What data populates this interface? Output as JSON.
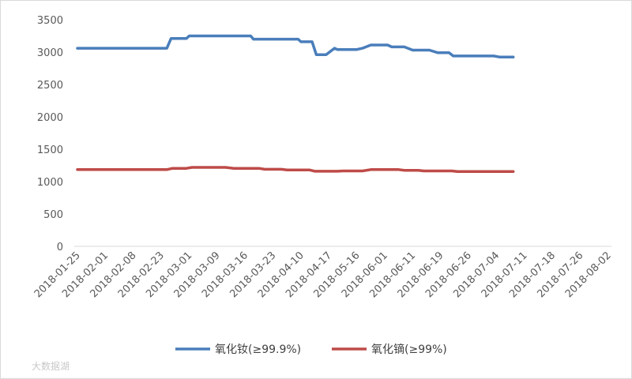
{
  "chart_data": {
    "type": "line",
    "title": "",
    "xlabel": "",
    "ylabel": "",
    "ylim": [
      0,
      3500
    ],
    "y_ticks": [
      0,
      500,
      1000,
      1500,
      2000,
      2500,
      3000,
      3500
    ],
    "grid": false,
    "legend_position": "bottom",
    "x_tick_labels": [
      "2018-01-25",
      "2018-02-01",
      "2018-02-08",
      "2018-02-23",
      "2018-03-01",
      "2018-03-09",
      "2018-03-16",
      "2018-03-23",
      "2018-04-10",
      "2018-04-17",
      "2018-05-16",
      "2018-06-01",
      "2018-06-11",
      "2018-06-19",
      "2018-06-26",
      "2018-07-04",
      "2018-07-11",
      "2018-07-18",
      "2018-07-26",
      "2018-08-02"
    ],
    "series": [
      {
        "name": "氧化钕(≥99.9%)",
        "color": "#4a7ebb",
        "points": [
          [
            0.0,
            3060
          ],
          [
            3.2,
            3060
          ],
          [
            3.35,
            3210
          ],
          [
            3.9,
            3210
          ],
          [
            4.0,
            3250
          ],
          [
            4.4,
            3250
          ],
          [
            5.5,
            3250
          ],
          [
            6.2,
            3250
          ],
          [
            6.3,
            3200
          ],
          [
            7.9,
            3200
          ],
          [
            8.0,
            3160
          ],
          [
            8.4,
            3160
          ],
          [
            8.55,
            2960
          ],
          [
            8.9,
            2960
          ],
          [
            9.2,
            3060
          ],
          [
            9.3,
            3040
          ],
          [
            10.0,
            3040
          ],
          [
            10.2,
            3060
          ],
          [
            10.5,
            3110
          ],
          [
            11.1,
            3110
          ],
          [
            11.25,
            3080
          ],
          [
            11.7,
            3080
          ],
          [
            12.0,
            3030
          ],
          [
            12.6,
            3030
          ],
          [
            12.9,
            2990
          ],
          [
            13.3,
            2990
          ],
          [
            13.45,
            2940
          ],
          [
            14.9,
            2940
          ],
          [
            15.1,
            2925
          ],
          [
            15.6,
            2925
          ]
        ]
      },
      {
        "name": "氧化镝(≥99%)",
        "color": "#be4b48",
        "points": [
          [
            0.0,
            1185
          ],
          [
            3.2,
            1185
          ],
          [
            3.4,
            1205
          ],
          [
            3.9,
            1205
          ],
          [
            4.1,
            1220
          ],
          [
            5.3,
            1220
          ],
          [
            5.6,
            1205
          ],
          [
            6.5,
            1205
          ],
          [
            6.7,
            1190
          ],
          [
            7.3,
            1190
          ],
          [
            7.5,
            1180
          ],
          [
            8.3,
            1180
          ],
          [
            8.5,
            1160
          ],
          [
            9.3,
            1160
          ],
          [
            9.5,
            1165
          ],
          [
            10.2,
            1165
          ],
          [
            10.5,
            1185
          ],
          [
            11.5,
            1185
          ],
          [
            11.7,
            1175
          ],
          [
            12.2,
            1175
          ],
          [
            12.4,
            1165
          ],
          [
            13.4,
            1165
          ],
          [
            13.6,
            1155
          ],
          [
            15.6,
            1155
          ]
        ]
      }
    ]
  },
  "watermark": "大数据湖"
}
